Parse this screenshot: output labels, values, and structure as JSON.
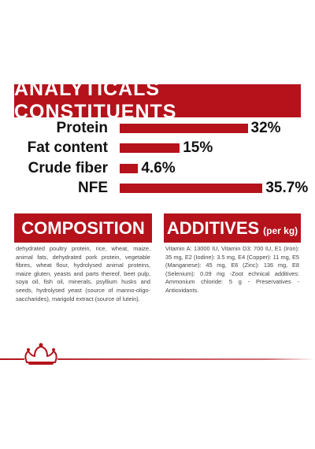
{
  "analytics": {
    "title": "ANALYTICALS CONSTITUENTS",
    "categories": [
      "Protein",
      "Fat content",
      "Crude fiber",
      "NFE"
    ],
    "values": [
      32,
      15,
      4.6,
      35.7
    ],
    "value_labels": [
      "32%",
      "15%",
      "4.6%",
      "35.7%"
    ],
    "color": "#b5121b"
  },
  "composition": {
    "title": "COMPOSITION",
    "text": "dehydrated poultry protein, rice, wheat, maize, animal fats, dehydrated pork protein, vegetable fibres, wheat flour, hydrolysed animal proteins, maize gluten, yeasts and parts thereof, beet pulp, soya oil, fish oil, minerals, psyllium husks and seeds, hydrolysed yeast (source of manno-oligo-saccharides), marigold extract (source of lutein)."
  },
  "additives": {
    "title": "ADDITIVES",
    "title_note": "(per kg)",
    "text": "Vitamin A: 13000 IU, Vitamin D3: 700 IU, E1 (Iron): 35 mg, E2 (Iodine): 3.5 mg, E4 (Copper): 11 mg, E5 (Manganese): 45 mg, E6 (Zinc): 136 mg, E8 (Selenium): 0.09 mg -Zoot echnical additives: Ammonium chloride: 5 g - Preservatives - Antioxidants."
  }
}
